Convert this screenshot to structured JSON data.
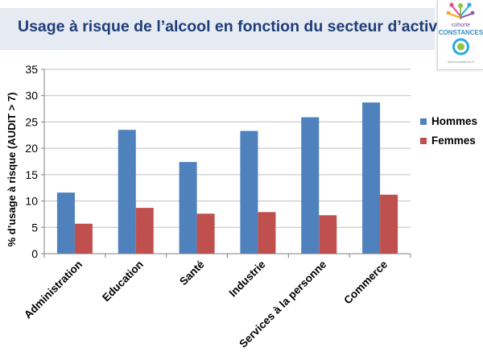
{
  "slide": {
    "title": "Usage à risque de l’alcool en fonction du secteur d’activité"
  },
  "logo": {
    "line1": "cohorte",
    "line2": "CONSTANCES",
    "url": "www.constances.fr",
    "colors": [
      "#e94b8a",
      "#f7a823",
      "#8dc63f",
      "#2aa9e0",
      "#8e5ea2"
    ]
  },
  "chart_data": {
    "type": "bar",
    "title": "",
    "xlabel": "",
    "ylabel": "% d’usage à risque (AUDIT > 7)",
    "ylim": [
      0,
      35
    ],
    "yticks": [
      0,
      5,
      10,
      15,
      20,
      25,
      30,
      35
    ],
    "grid": true,
    "legend_position": "right",
    "categories": [
      "Administration",
      "Education",
      "Santé",
      "Industrie",
      "Services à la personne",
      "Commerce"
    ],
    "series": [
      {
        "name": "Hommes",
        "color": "#4f81bd",
        "values": [
          11.6,
          23.5,
          17.4,
          23.3,
          25.9,
          28.7
        ]
      },
      {
        "name": "Femmes",
        "color": "#c0504d",
        "values": [
          5.7,
          8.7,
          7.6,
          7.9,
          7.3,
          11.2
        ]
      }
    ]
  }
}
